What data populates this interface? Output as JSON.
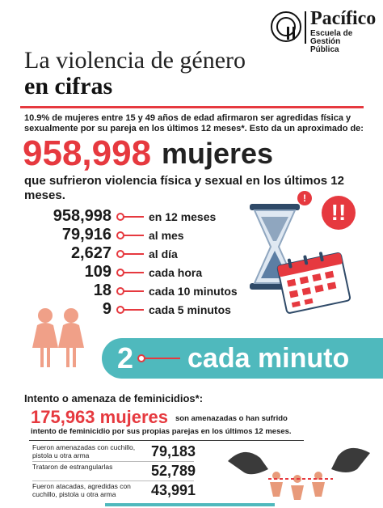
{
  "header": {
    "brand": "Pacífico",
    "brand_sub_1": "Escuela de Gestión",
    "brand_sub_2": "Pública",
    "title_line1": "La violencia de género",
    "title_line2": "en cifras"
  },
  "intro": {
    "text": "10.9% de mujeres entre 15 y 49 años de edad afirmaron ser agredidas física y sexualmente por su pareja en los últimos 12 meses*. Esto da un aproximado de:",
    "big_number": "958,998",
    "big_unit": "mujeres",
    "subtitle": "que sufrieron violencia física y sexual en los últimos 12 meses."
  },
  "stats": [
    {
      "number": "958,998",
      "label": "en 12 meses"
    },
    {
      "number": "79,916",
      "label": "al mes"
    },
    {
      "number": "2,627",
      "label": "al día"
    },
    {
      "number": "109",
      "label": "cada hora"
    },
    {
      "number": "18",
      "label": "cada 10 minutos"
    },
    {
      "number": "9",
      "label": "cada 5 minutos"
    }
  ],
  "band": {
    "number": "2",
    "text": "cada minuto"
  },
  "femicide": {
    "heading": "Intento o amenaza de feminicidios*:",
    "big_number": "175,963 mujeres",
    "big_rest": "son amenazadas o han sufrido",
    "sub": "intento de feminicidio por sus propias parejas en los últimos 12 meses.",
    "items": [
      {
        "label": "Fueron amenazadas con cuchillo, pistola u otra arma",
        "number": "79,183"
      },
      {
        "label": "Trataron de estrangularlas",
        "number": "52,789"
      },
      {
        "label": "Fueron atacadas, agredidas con cuchillo, pistola u otra arma",
        "number": "43,991"
      }
    ]
  },
  "icons": {
    "alert_large": "!!",
    "alert_small": "!"
  },
  "colors": {
    "accent": "#e6393f",
    "teal": "#4fb9bd",
    "figure": "#f0a088"
  }
}
